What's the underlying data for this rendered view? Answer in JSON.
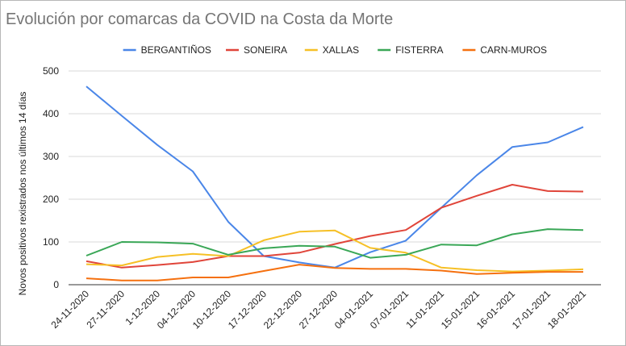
{
  "chart_data": {
    "type": "line",
    "title": "Evolución por comarcas da COVID na Costa da Morte",
    "xlabel": "",
    "ylabel": "Novos positivos rexistrados nos últimos 14 días",
    "ylim": [
      0,
      500
    ],
    "yticks": [
      0,
      100,
      200,
      300,
      400,
      500
    ],
    "grid": true,
    "legend_position": "top",
    "categories": [
      "24-11-2020",
      "27-11-2020",
      "1-12-2020",
      "04-12-2020",
      "10-12-2020",
      "17-12-2020",
      "22-12-2020",
      "27-12-2020",
      "04-01-2021",
      "07-01-2021",
      "11-01-2021",
      "15-01-2021",
      "16-01-2021",
      "17-01-2021",
      "18-01-2021"
    ],
    "series": [
      {
        "name": "BERGANTIÑOS",
        "color": "#4a86e8",
        "values": [
          464,
          395,
          327,
          265,
          147,
          67,
          52,
          40,
          76,
          103,
          180,
          256,
          322,
          333,
          369
        ]
      },
      {
        "name": "SONEIRA",
        "color": "#e0453a",
        "values": [
          55,
          40,
          46,
          53,
          67,
          67,
          75,
          95,
          114,
          128,
          180,
          208,
          234,
          219,
          218
        ]
      },
      {
        "name": "XALLAS",
        "color": "#f6c026",
        "values": [
          48,
          45,
          65,
          72,
          67,
          104,
          124,
          127,
          86,
          75,
          40,
          34,
          31,
          33,
          36
        ]
      },
      {
        "name": "FISTERRA",
        "color": "#3aa757",
        "values": [
          68,
          100,
          99,
          96,
          70,
          85,
          91,
          89,
          63,
          70,
          94,
          92,
          118,
          130,
          128
        ]
      },
      {
        "name": "CARN-MUROS",
        "color": "#f5700f",
        "values": [
          15,
          10,
          10,
          17,
          17,
          32,
          47,
          39,
          37,
          37,
          33,
          25,
          28,
          30,
          30
        ]
      }
    ]
  }
}
